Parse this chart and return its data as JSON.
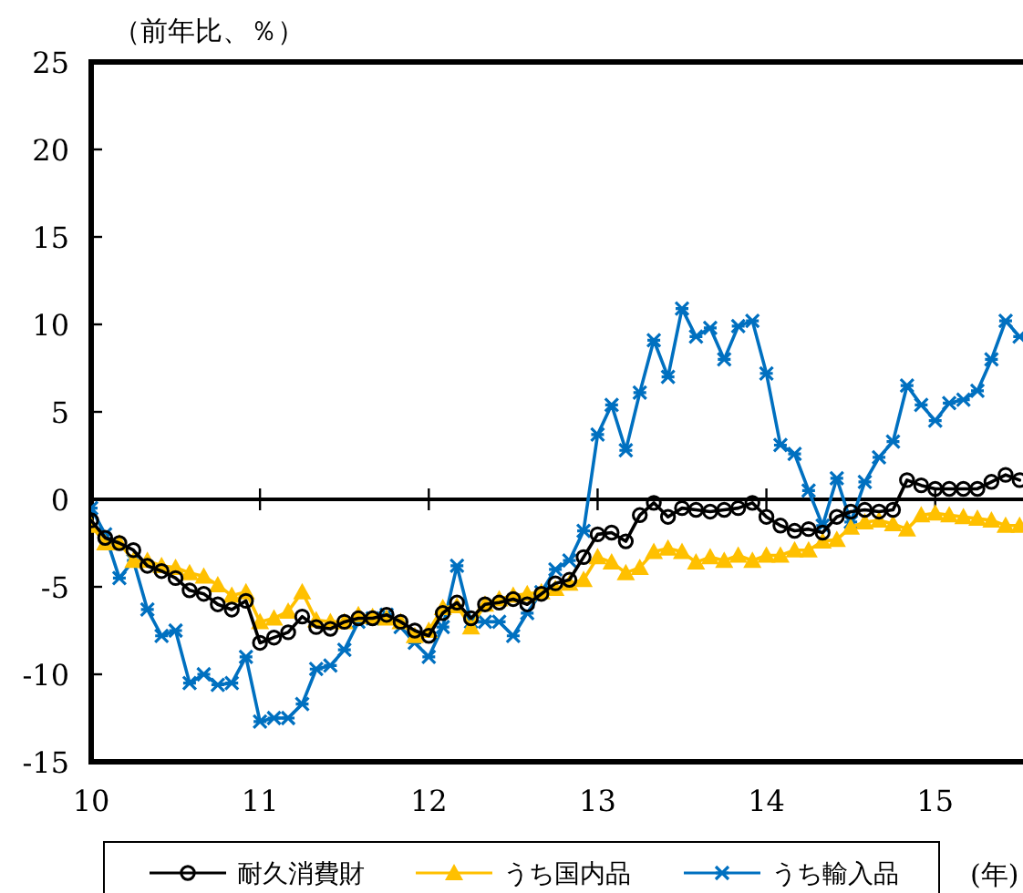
{
  "chart_data": {
    "type": "line",
    "ylabel": "（前年比、％）",
    "xlabel": "(年)",
    "x": [
      10,
      10.083,
      10.167,
      10.25,
      10.333,
      10.417,
      10.5,
      10.583,
      10.667,
      10.75,
      10.833,
      10.917,
      11,
      11.083,
      11.167,
      11.25,
      11.333,
      11.417,
      11.5,
      11.583,
      11.667,
      11.75,
      11.833,
      11.917,
      12,
      12.083,
      12.167,
      12.25,
      12.333,
      12.417,
      12.5,
      12.583,
      12.667,
      12.75,
      12.833,
      12.917,
      13,
      13.083,
      13.167,
      13.25,
      13.333,
      13.417,
      13.5,
      13.583,
      13.667,
      13.75,
      13.833,
      13.917,
      14,
      14.083,
      14.167,
      14.25,
      14.333,
      14.417,
      14.5,
      14.583,
      14.667,
      14.75,
      14.833,
      14.917,
      15,
      15.083,
      15.167,
      15.25,
      15.333,
      15.417,
      15.5
    ],
    "series": [
      {
        "name": "耐久消費財",
        "color": "#000000",
        "marker": "circle",
        "values": [
          -1.2,
          -2.2,
          -2.5,
          -2.9,
          -3.8,
          -4.1,
          -4.5,
          -5.2,
          -5.4,
          -6,
          -6.3,
          -5.8,
          -8.2,
          -7.9,
          -7.6,
          -6.7,
          -7.3,
          -7.4,
          -7,
          -6.8,
          -6.8,
          -6.6,
          -7,
          -7.5,
          -7.8,
          -6.5,
          -5.9,
          -6.8,
          -6,
          -5.9,
          -5.7,
          -6,
          -5.4,
          -4.8,
          -4.6,
          -3.3,
          -2,
          -1.9,
          -2.4,
          -0.9,
          -0.2,
          -1,
          -0.5,
          -0.6,
          -0.7,
          -0.6,
          -0.5,
          -0.2,
          -1,
          -1.5,
          -1.8,
          -1.7,
          -1.9,
          -1,
          -0.7,
          -0.6,
          -0.7,
          -0.6,
          1.1,
          0.8,
          0.6,
          0.6,
          0.6,
          0.6,
          1,
          1.4,
          1.1
        ]
      },
      {
        "name": "うち国内品",
        "color": "#ffc000",
        "marker": "triangle",
        "values": [
          -1.5,
          -2.5,
          -2.5,
          -3.5,
          -3.5,
          -3.8,
          -3.9,
          -4.2,
          -4.4,
          -4.9,
          -5.5,
          -5.3,
          -7,
          -6.8,
          -6.4,
          -5.3,
          -6.9,
          -7,
          -7,
          -6.6,
          -6.7,
          -6.8,
          -7,
          -7.8,
          -7.5,
          -6.2,
          -6.1,
          -7.3,
          -6,
          -5.7,
          -5.5,
          -5.4,
          -5.3,
          -5.1,
          -4.8,
          -4.6,
          -3.3,
          -3.6,
          -4.2,
          -3.9,
          -3,
          -2.8,
          -3,
          -3.6,
          -3.3,
          -3.5,
          -3.2,
          -3.5,
          -3.2,
          -3.2,
          -2.9,
          -2.9,
          -2.4,
          -2.3,
          -1.6,
          -1.3,
          -1.2,
          -1.4,
          -1.7,
          -0.9,
          -0.8,
          -0.9,
          -1,
          -1.1,
          -1.2,
          -1.5,
          -1.5
        ]
      },
      {
        "name": "うち輸入品",
        "color": "#0070c0",
        "marker": "cross",
        "values": [
          -0.5,
          -2,
          -4.5,
          -3.5,
          -6.3,
          -7.8,
          -7.5,
          -10.5,
          -10,
          -10.6,
          -10.5,
          -9,
          -12.7,
          -12.5,
          -12.5,
          -11.7,
          -9.7,
          -9.5,
          -8.6,
          -7,
          -6.8,
          -6.6,
          -7.3,
          -8.2,
          -9,
          -7.3,
          -3.8,
          -7,
          -7,
          -7,
          -7.8,
          -6.5,
          -5.3,
          -4,
          -3.5,
          -1.8,
          3.7,
          5.4,
          2.8,
          6.1,
          9.1,
          7,
          10.9,
          9.3,
          9.8,
          8,
          9.9,
          10.2,
          7.2,
          3.1,
          2.6,
          0.5,
          -1.5,
          1.2,
          -1.3,
          1,
          2.4,
          3.3,
          6.5,
          5.4,
          4.5,
          5.5,
          5.7,
          6.2,
          8,
          10.2,
          9.3
        ]
      }
    ],
    "xlim": [
      10,
      15.52
    ],
    "xticks": [
      10,
      11,
      12,
      13,
      14,
      15
    ],
    "ylim": [
      -15,
      25
    ],
    "yticks": [
      -15,
      -10,
      -5,
      0,
      5,
      10,
      15,
      20,
      25
    ],
    "ref_lines": [
      {
        "axis": "y",
        "value": 0,
        "color": "#000000"
      }
    ],
    "grid": false,
    "legend": "bottom",
    "line_style": "solid"
  }
}
